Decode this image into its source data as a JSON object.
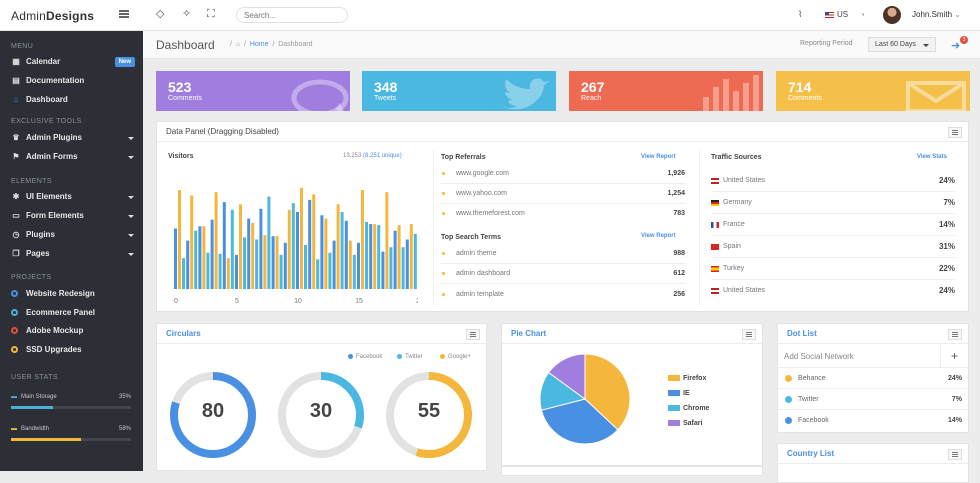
{
  "brand": {
    "part1": "Admin",
    "part2": "Designs"
  },
  "topbar": {
    "search_placeholder": "Search...",
    "language": "US",
    "user_name": "John.Smith"
  },
  "sidebar": {
    "sections": [
      {
        "heading": "MENU",
        "items": [
          {
            "label": "Calendar",
            "icon": "calendar-icon",
            "badge": "New"
          },
          {
            "label": "Documentation",
            "icon": "book-icon"
          },
          {
            "label": "Dashboard",
            "icon": "home-icon",
            "active": true
          }
        ]
      },
      {
        "heading": "EXCLUSIVE TOOLS",
        "items": [
          {
            "label": "Admin Plugins",
            "icon": "trophy-icon",
            "caret": true
          },
          {
            "label": "Admin Forms",
            "icon": "flag-icon",
            "caret": true
          }
        ]
      },
      {
        "heading": "ELEMENTS",
        "items": [
          {
            "label": "UI Elements",
            "icon": "puzzle-icon",
            "caret": true
          },
          {
            "label": "Form Elements",
            "icon": "form-icon",
            "caret": true
          },
          {
            "label": "Plugins",
            "icon": "clock-icon",
            "caret": true
          },
          {
            "label": "Pages",
            "icon": "pages-icon",
            "caret": true
          }
        ]
      },
      {
        "heading": "PROJECTS",
        "items": [
          {
            "label": "Website Redesign",
            "dot": "#4a90e2"
          },
          {
            "label": "Ecommerce Panel",
            "dot": "#4ab0d9"
          },
          {
            "label": "Adobe Mockup",
            "dot": "#e5503d"
          },
          {
            "label": "SSD Upgrades",
            "dot": "#f5b73b"
          }
        ]
      }
    ],
    "user_stats_heading": "USER STATS",
    "stats": [
      {
        "label": "Main Storage",
        "percent_text": "35%",
        "value": 0.35,
        "color": "#4ab0d9"
      },
      {
        "label": "Bandwidth",
        "percent_text": "58%",
        "value": 0.58,
        "color": "#f5b73b"
      }
    ]
  },
  "header": {
    "title": "Dashboard",
    "breadcrumb_home": "Home",
    "breadcrumb_current": "Dashboard",
    "reporting_label": "Reporting Period",
    "reporting_value": "Last 60 Days",
    "notification_count": "3"
  },
  "tiles": [
    {
      "value": "523",
      "label": "Comments",
      "color": "#a07ee0",
      "icon": "speech-bubble-icon"
    },
    {
      "value": "348",
      "label": "Tweets",
      "color": "#4ab8e0",
      "icon": "twitter-bird-icon"
    },
    {
      "value": "267",
      "label": "Reach",
      "color": "#ee6a52",
      "icon": "bar-chart-icon"
    },
    {
      "value": "714",
      "label": "Comments",
      "color": "#f5c04a",
      "icon": "envelope-icon"
    }
  ],
  "data_panel": {
    "title": "Data Panel (Dragging Disabled)",
    "visitors": {
      "title": "Visitors",
      "total": "13,253",
      "unique": "(8,251 unique)"
    },
    "top_referrals": {
      "title": "Top Referrals",
      "link": "View Report",
      "rows": [
        {
          "name": "www.google.com",
          "value": "1,926"
        },
        {
          "name": "www.yahoo.com",
          "value": "1,254"
        },
        {
          "name": "www.themeforest.com",
          "value": "783"
        }
      ]
    },
    "top_search": {
      "title": "Top Search Terms",
      "link": "View Report",
      "rows": [
        {
          "name": "admin theme",
          "value": "988"
        },
        {
          "name": "admin dashboard",
          "value": "612"
        },
        {
          "name": "admin template",
          "value": "256"
        }
      ]
    },
    "traffic": {
      "title": "Traffic Sources",
      "link": "View Stats",
      "rows": [
        {
          "name": "United States",
          "value": "24%",
          "flag": "us"
        },
        {
          "name": "Germany",
          "value": "7%",
          "flag": "de"
        },
        {
          "name": "France",
          "value": "14%",
          "flag": "fr"
        },
        {
          "name": "Spain",
          "value": "31%",
          "flag": "es"
        },
        {
          "name": "Turkey",
          "value": "22%",
          "flag": "tr"
        },
        {
          "name": "United States",
          "value": "24%",
          "flag": "us"
        }
      ]
    }
  },
  "chart_data": [
    {
      "type": "bar",
      "title": "Visitors",
      "x_ticks": [
        "0",
        "5",
        "10",
        "15",
        "20"
      ],
      "ylim": [
        0,
        100
      ],
      "grid": false,
      "series": [
        {
          "color": "#4a90e2",
          "values": [
            55,
            44,
            57,
            63,
            79,
            31,
            64,
            73,
            48,
            42,
            70,
            81,
            67,
            44,
            62,
            42,
            59,
            34,
            53,
            45
          ]
        },
        {
          "color": "#f5b73b",
          "values": [
            90,
            85,
            57,
            88,
            28,
            77,
            60,
            49,
            48,
            72,
            92,
            86,
            64,
            77,
            44,
            90,
            59,
            88,
            58,
            59
          ]
        },
        {
          "color": "#4ab8e0",
          "values": [
            28,
            53,
            33,
            32,
            72,
            47,
            45,
            84,
            31,
            78,
            40,
            27,
            33,
            70,
            31,
            61,
            58,
            38,
            38,
            50
          ]
        }
      ]
    },
    {
      "type": "donut",
      "title": "Circulars",
      "legend": [
        "Facebook",
        "Twitter",
        "Google+"
      ],
      "legend_colors": [
        "#4a90e2",
        "#4ab8e0",
        "#f5b73b"
      ],
      "values": [
        80,
        30,
        55
      ]
    },
    {
      "type": "pie",
      "title": "Pie Chart",
      "categories": [
        "Firefox",
        "IE",
        "Chrome",
        "Safari"
      ],
      "values": [
        37,
        34,
        14,
        15
      ],
      "colors": [
        "#f5b73b",
        "#4a90e2",
        "#4ab8e0",
        "#a07ee0"
      ]
    }
  ],
  "circulars": {
    "title": "Circulars",
    "legend": [
      "Facebook",
      "Twitter",
      "Google+"
    ],
    "values": [
      "80",
      "30",
      "55"
    ]
  },
  "pie_panel": {
    "title": "Pie Chart",
    "legend": [
      "Firefox",
      "IE",
      "Chrome",
      "Safari"
    ]
  },
  "dot_list": {
    "title": "Dot List",
    "input_placeholder": "Add Social Network",
    "rows": [
      {
        "name": "Behance",
        "value": "24%",
        "color": "#f5b73b"
      },
      {
        "name": "Twitter",
        "value": "7%",
        "color": "#4ab8e0"
      },
      {
        "name": "Facebook",
        "value": "14%",
        "color": "#4a90e2"
      }
    ]
  },
  "country_list": {
    "title": "Country List"
  }
}
